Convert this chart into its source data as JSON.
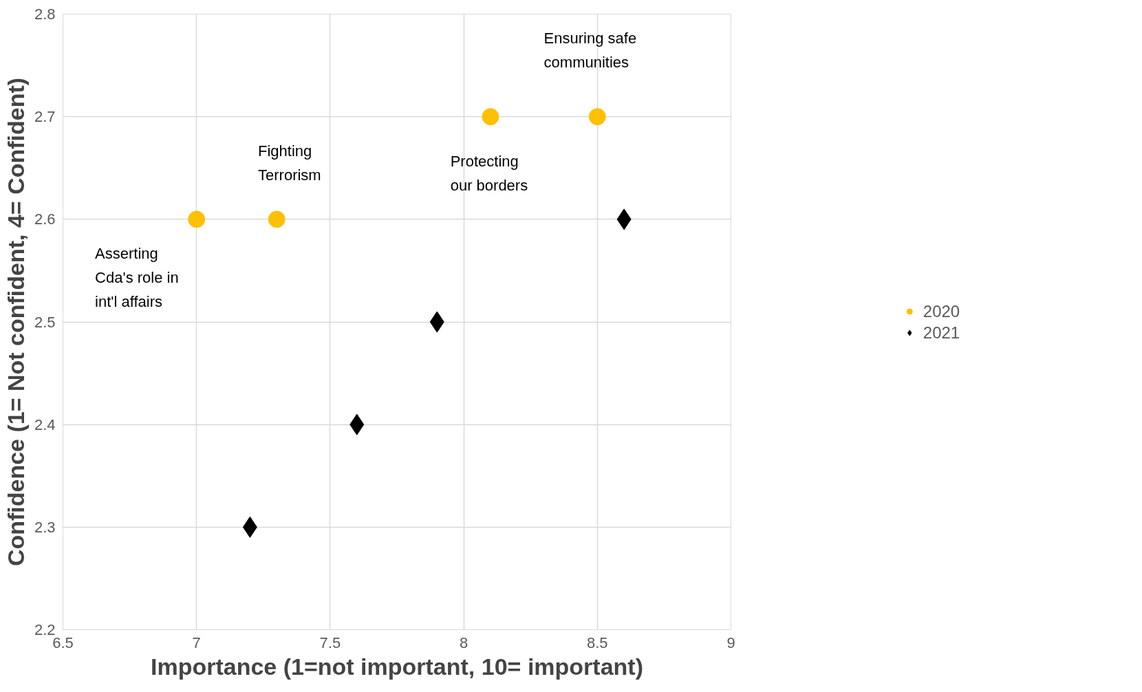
{
  "chart_data": {
    "type": "scatter",
    "xlabel": "Importance (1=not important, 10= important)",
    "ylabel": "Confidence (1= Not confident, 4= Confident)",
    "xlim": [
      6.5,
      9
    ],
    "xticks": [
      6.5,
      7,
      7.5,
      8,
      8.5,
      9
    ],
    "ylim": [
      2.2,
      2.8
    ],
    "yticks": [
      2.2,
      2.3,
      2.4,
      2.5,
      2.6,
      2.7,
      2.8
    ],
    "grid": true,
    "legend": "right",
    "series": [
      {
        "name": "2020",
        "color": "#ffc000",
        "marker": "circle",
        "x": [
          7,
          7.3,
          8.1,
          8.5
        ],
        "values": [
          2.6,
          2.6,
          2.7,
          2.7
        ]
      },
      {
        "name": "2021",
        "color": "#000000",
        "marker": "diamond",
        "x": [
          7.2,
          7.6,
          7.9,
          8.6
        ],
        "values": [
          2.3,
          2.4,
          2.5,
          2.6
        ]
      }
    ],
    "annotations": [
      "Asserting\nCda's role in\nint'l affairs",
      "Fighting\nTerrorism",
      "Protecting\nour borders",
      "Ensuring safe\ncommunities"
    ]
  }
}
